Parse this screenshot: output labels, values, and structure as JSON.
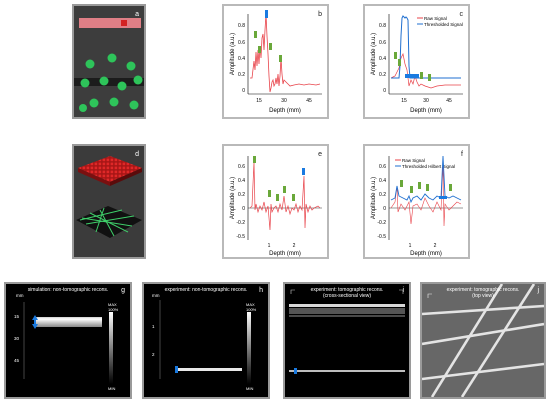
{
  "panels": {
    "a": {
      "letter": "a"
    },
    "b": {
      "letter": "b",
      "ylabel": "Amplitude (a.u.)",
      "xlabel": "Depth (mm)",
      "xticks": [
        "15",
        "30",
        "45"
      ],
      "yticks": [
        "0.8",
        "0.6",
        "0.4",
        "0.2",
        "0"
      ]
    },
    "c": {
      "letter": "c",
      "ylabel": "Amplitude (a.u.)",
      "xlabel": "Depth (mm)",
      "xticks": [
        "15",
        "30",
        "45"
      ],
      "yticks": [
        "0.8",
        "0.6",
        "0.4",
        "0.2",
        "0"
      ],
      "legend": [
        "Raw Signal",
        "Thresholded Signal"
      ]
    },
    "d": {
      "letter": "d"
    },
    "e": {
      "letter": "e",
      "ylabel": "Amplitude (a.u.)",
      "xlabel": "Depth (mm)",
      "xticks": [
        "1",
        "2"
      ],
      "yticks": [
        "0.6",
        "0.4",
        "0.2",
        "0",
        "-0.2",
        "-0.5"
      ]
    },
    "f": {
      "letter": "f",
      "ylabel": "Amplitude (a.u.)",
      "xlabel": "Depth (mm)",
      "xticks": [
        "1",
        "2"
      ],
      "yticks": [
        "0.6",
        "0.4",
        "0.2",
        "0",
        "-0.2",
        "-0.5"
      ],
      "legend": [
        "Raw Signal",
        "Thresholded Hilbert Signal"
      ]
    },
    "g": {
      "letter": "g",
      "title": "simulation: non-tomographic recons.",
      "unit": "mm",
      "ticks": [
        "15",
        "30",
        "45"
      ],
      "max": "MAX",
      "pct": "100%",
      "min": "MIN"
    },
    "h": {
      "letter": "h",
      "title": "experiment: non-tomographic recons.",
      "unit": "mm",
      "ticks": [
        "1",
        "2"
      ],
      "max": "MAX",
      "pct": "100%",
      "min": "MIN"
    },
    "i": {
      "letter": "i",
      "title": "experiment: tomographic recons.",
      "subtitle": "(cross-sectional view)"
    },
    "j": {
      "letter": "j",
      "title": "experiment: tomographic recons.",
      "subtitle": "(top view)"
    }
  },
  "colors": {
    "raw": "#e8434a",
    "threshold": "#1f6fd0",
    "marker_green": "#6aa83a",
    "marker_blue": "#1a7ae0",
    "sphere": "#2ec45a",
    "cube": "#d32222"
  }
}
